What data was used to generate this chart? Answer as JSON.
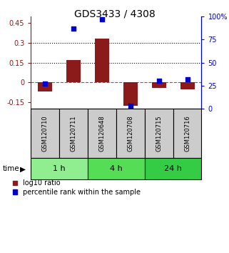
{
  "title": "GDS3433 / 4308",
  "samples": [
    "GSM120710",
    "GSM120711",
    "GSM120648",
    "GSM120708",
    "GSM120715",
    "GSM120716"
  ],
  "log10_ratio": [
    -0.07,
    0.17,
    0.33,
    -0.175,
    -0.04,
    -0.055
  ],
  "percentile": [
    27,
    87,
    97,
    3,
    30,
    32
  ],
  "groups": [
    {
      "label": "1 h",
      "indices": [
        0,
        1
      ],
      "color": "#90ee90"
    },
    {
      "label": "4 h",
      "indices": [
        2,
        3
      ],
      "color": "#55dd55"
    },
    {
      "label": "24 h",
      "indices": [
        4,
        5
      ],
      "color": "#33cc44"
    }
  ],
  "bar_color": "#8B1A1A",
  "dot_color": "#0000cc",
  "ylim_left": [
    -0.2,
    0.5
  ],
  "ylim_right": [
    0,
    100
  ],
  "yticks_left": [
    -0.15,
    0,
    0.15,
    0.3,
    0.45
  ],
  "yticks_right": [
    0,
    25,
    50,
    75,
    100
  ],
  "hlines": [
    0.15,
    0.3
  ],
  "hline_zero": 0,
  "background_color": "#ffffff",
  "label_bar": "log10 ratio",
  "label_dot": "percentile rank within the sample",
  "time_label": "time",
  "sample_box_color": "#cccccc"
}
